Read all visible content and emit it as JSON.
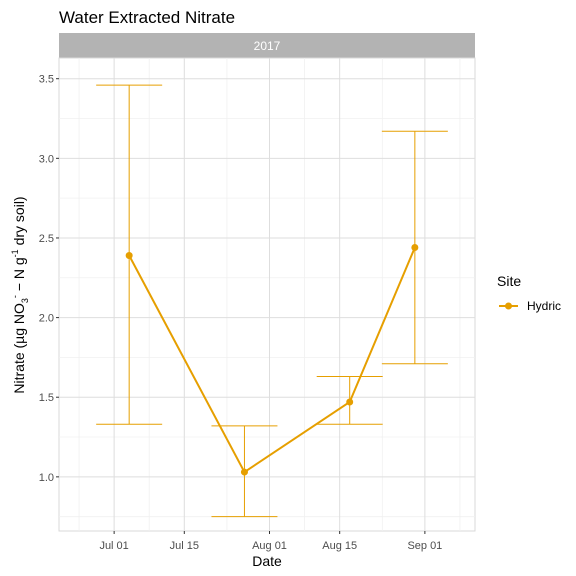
{
  "chart_data": {
    "type": "line",
    "title": "Water Extracted Nitrate",
    "facet": "2017",
    "xlabel": "Date",
    "ylabel": "Nitrate (µg NO3- − N g-1 dry soil)",
    "xlim": [
      "2017-06-20",
      "2017-09-11"
    ],
    "ylim": [
      0.66,
      3.63
    ],
    "x_ticks": [
      {
        "date": "2017-07-01",
        "label": "Jul 01"
      },
      {
        "date": "2017-07-15",
        "label": "Jul 15"
      },
      {
        "date": "2017-08-01",
        "label": "Aug 01"
      },
      {
        "date": "2017-08-15",
        "label": "Aug 15"
      },
      {
        "date": "2017-09-01",
        "label": "Sep 01"
      }
    ],
    "y_ticks": [
      {
        "value": 1.0,
        "label": "1.0"
      },
      {
        "value": 1.5,
        "label": "1.5"
      },
      {
        "value": 2.0,
        "label": "2.0"
      },
      {
        "value": 2.5,
        "label": "2.5"
      },
      {
        "value": 3.0,
        "label": "3.0"
      },
      {
        "value": 3.5,
        "label": "3.5"
      }
    ],
    "grid": true,
    "legend": {
      "title": "Site",
      "position": "right"
    },
    "series": [
      {
        "name": "Hydric",
        "color": "#E69F00",
        "points": [
          {
            "x": "2017-07-04",
            "y": 2.39,
            "ymin": 1.33,
            "ymax": 3.46
          },
          {
            "x": "2017-07-27",
            "y": 1.03,
            "ymin": 0.75,
            "ymax": 1.32
          },
          {
            "x": "2017-08-17",
            "y": 1.47,
            "ymin": 1.33,
            "ymax": 1.63
          },
          {
            "x": "2017-08-30",
            "y": 2.44,
            "ymin": 1.71,
            "ymax": 3.17
          }
        ]
      }
    ]
  }
}
